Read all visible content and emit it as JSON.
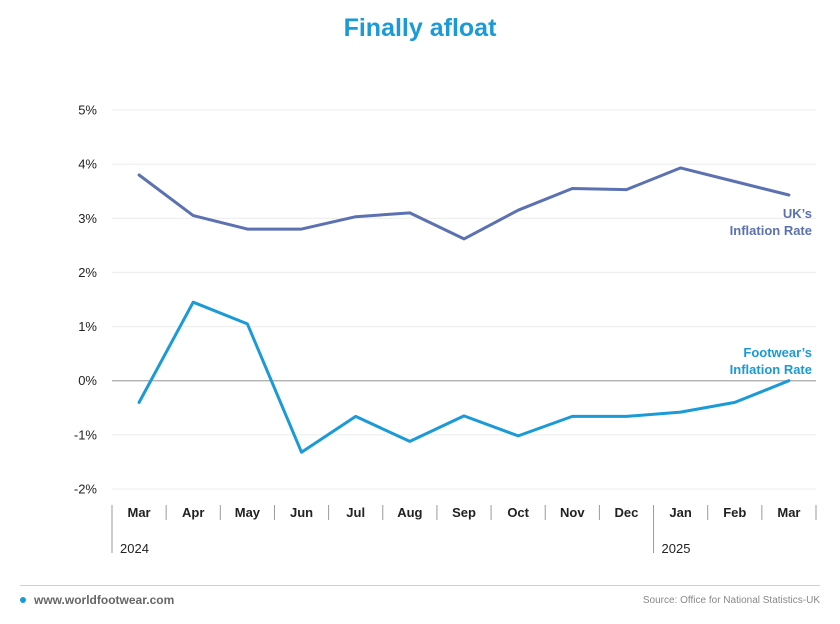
{
  "title": "Finally afloat",
  "footer": {
    "website": "www.worldfootwear.com",
    "source": "Source: Office for National Statistics-UK"
  },
  "colors": {
    "uk": "#5b71b1",
    "footwear": "#1a9ad6",
    "title": "#1a9ad6"
  },
  "chart_data": {
    "type": "line",
    "x": [
      "Mar",
      "Apr",
      "May",
      "Jun",
      "Jul",
      "Aug",
      "Sep",
      "Oct",
      "Nov",
      "Dec",
      "Jan",
      "Feb",
      "Mar"
    ],
    "year_labels": [
      {
        "label": "2024",
        "start_index": 0
      },
      {
        "label": "2025",
        "start_index": 10
      }
    ],
    "ylim": [
      -2,
      5
    ],
    "yticks": [
      -2,
      -1,
      0,
      1,
      2,
      3,
      4,
      5
    ],
    "ytick_labels": [
      "-2%",
      "-1%",
      "0%",
      "1%",
      "2%",
      "3%",
      "4%",
      "5%"
    ],
    "grid": true,
    "series": [
      {
        "name": "UK's Inflation Rate",
        "label_lines": [
          "UK’s",
          "Inflation Rate"
        ],
        "color": "#5b71b1",
        "values": [
          3.8,
          3.05,
          2.8,
          2.8,
          3.03,
          3.1,
          2.62,
          3.15,
          3.55,
          3.53,
          3.93,
          3.68,
          3.43
        ]
      },
      {
        "name": "Footwear's Inflation Rate",
        "label_lines": [
          "Footwear’s",
          "Inflation Rate"
        ],
        "color": "#1a9ad6",
        "values": [
          -0.4,
          1.45,
          1.05,
          -1.32,
          -0.66,
          -1.12,
          -0.65,
          -1.02,
          -0.66,
          -0.66,
          -0.58,
          -0.4,
          0.0
        ]
      }
    ]
  }
}
